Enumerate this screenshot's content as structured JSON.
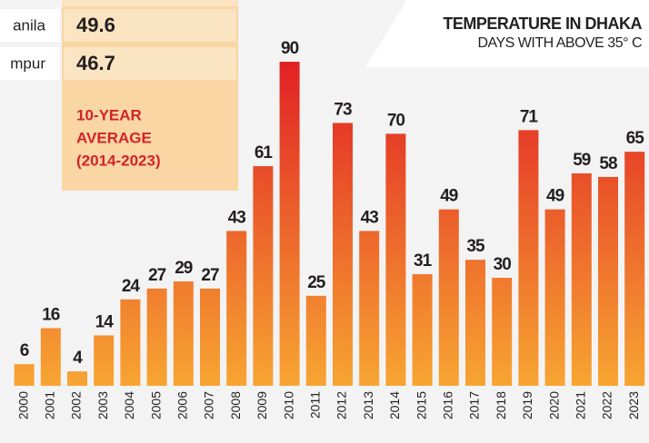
{
  "chart_data": {
    "type": "bar",
    "title": "TEMPERATURE IN DHAKA",
    "subtitle": "DAYS WITH ABOVE 35° C",
    "categories": [
      "2000",
      "2001",
      "2002",
      "2003",
      "2004",
      "2005",
      "2006",
      "2007",
      "2008",
      "2009",
      "2010",
      "2011",
      "2012",
      "2013",
      "2014",
      "2015",
      "2016",
      "2017",
      "2018",
      "2019",
      "2020",
      "2021",
      "2022",
      "2023"
    ],
    "values": [
      6,
      16,
      4,
      14,
      24,
      27,
      29,
      27,
      43,
      61,
      90,
      25,
      73,
      43,
      70,
      31,
      49,
      35,
      30,
      71,
      49,
      59,
      58,
      65
    ],
    "color_top": "#e01e24",
    "color_bottom": "#f7a532"
  },
  "inset": {
    "rows": [
      {
        "label": "anila",
        "value": 49.6
      },
      {
        "label": "mpur",
        "value": 46.7
      }
    ],
    "note": [
      "10-YEAR",
      "AVERAGE",
      "(2014-2023)"
    ]
  }
}
